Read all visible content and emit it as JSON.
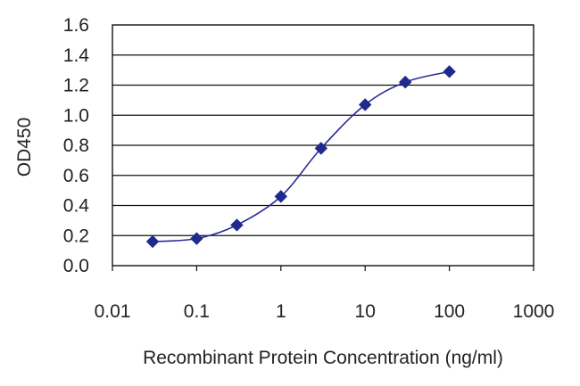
{
  "chart_data": {
    "type": "line",
    "title": "",
    "xlabel": "Recombinant Protein Concentration (ng/ml)",
    "ylabel": "OD450",
    "x_scale": "log",
    "xlim": [
      0.01,
      1000
    ],
    "ylim": [
      0.0,
      1.6
    ],
    "x_tick_labels": [
      "0.01",
      "0.1",
      "1",
      "10",
      "100",
      "1000"
    ],
    "x_ticks": [
      0.01,
      0.1,
      1,
      10,
      100,
      1000
    ],
    "y_tick_labels": [
      "0.0",
      "0.2",
      "0.4",
      "0.6",
      "0.8",
      "1.0",
      "1.2",
      "1.4",
      "1.6"
    ],
    "y_ticks": [
      0.0,
      0.2,
      0.4,
      0.6,
      0.8,
      1.0,
      1.2,
      1.4,
      1.6
    ],
    "grid": "horizontal",
    "legend": "none",
    "series": [
      {
        "x": [
          0.03,
          0.1,
          0.3,
          1,
          3,
          10,
          30,
          100
        ],
        "values": [
          0.16,
          0.18,
          0.27,
          0.46,
          0.78,
          1.07,
          1.22,
          1.29
        ],
        "color": "#2b2b9a",
        "marker": "diamond",
        "marker_color": "#1f2a8c"
      }
    ]
  }
}
